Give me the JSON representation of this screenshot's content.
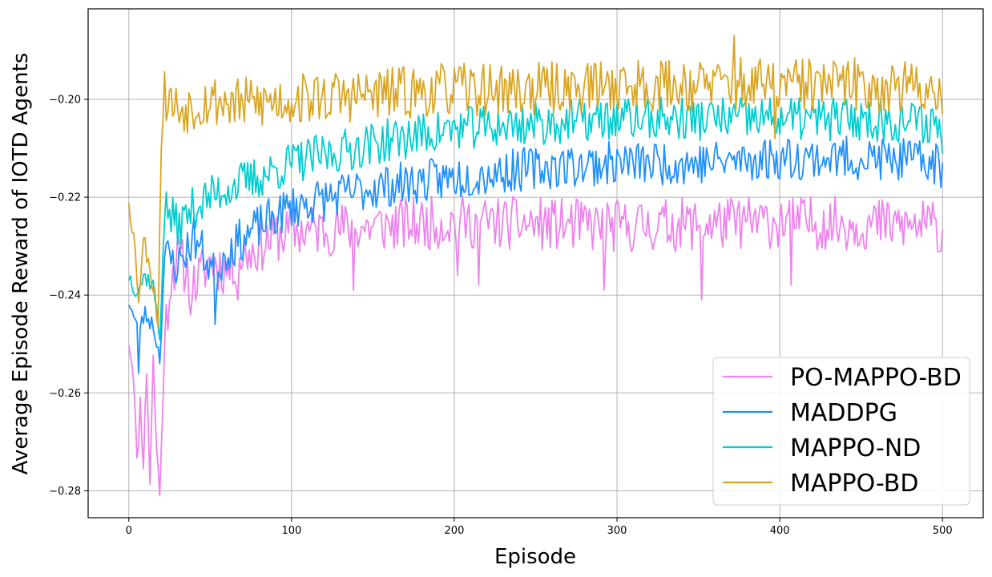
{
  "chart_data": {
    "type": "line",
    "title": "",
    "xlabel": "Episode",
    "ylabel": "Average Episode Reward of IOTD Agents",
    "xlim": [
      -25,
      525
    ],
    "ylim": [
      -0.2855,
      -0.1815
    ],
    "xticks": [
      0,
      100,
      200,
      300,
      400,
      500
    ],
    "yticks": [
      -0.28,
      -0.26,
      -0.24,
      -0.22,
      -0.2
    ],
    "ytick_labels": [
      "−0.28",
      "−0.26",
      "−0.24",
      "−0.22",
      "−0.20"
    ],
    "grid": true,
    "legend_position": "lower-right",
    "series": [
      {
        "name": "PO-MAPPO-BD",
        "color": "#ee82ee",
        "keypoints": [
          [
            0,
            -0.249
          ],
          [
            3,
            -0.256
          ],
          [
            5,
            -0.275
          ],
          [
            7,
            -0.262
          ],
          [
            9,
            -0.274
          ],
          [
            11,
            -0.255
          ],
          [
            13,
            -0.278
          ],
          [
            15,
            -0.253
          ],
          [
            17,
            -0.271
          ],
          [
            19,
            -0.281
          ],
          [
            21,
            -0.26
          ],
          [
            23,
            -0.245
          ],
          [
            26,
            -0.236
          ],
          [
            30,
            -0.232
          ],
          [
            35,
            -0.235
          ],
          [
            40,
            -0.238
          ],
          [
            50,
            -0.233
          ],
          [
            60,
            -0.235
          ],
          [
            70,
            -0.232
          ],
          [
            80,
            -0.23
          ],
          [
            90,
            -0.228
          ],
          [
            100,
            -0.227
          ],
          [
            150,
            -0.226
          ],
          [
            200,
            -0.225
          ],
          [
            300,
            -0.226
          ],
          [
            400,
            -0.225
          ],
          [
            500,
            -0.226
          ]
        ],
        "noise": 0.0055,
        "seed": 11,
        "spikes": [
          [
            19,
            -0.281
          ],
          [
            38,
            -0.244
          ],
          [
            67,
            -0.241
          ],
          [
            138,
            -0.239
          ],
          [
            202,
            -0.236
          ],
          [
            215,
            -0.238
          ],
          [
            292,
            -0.239
          ],
          [
            352,
            -0.241
          ],
          [
            407,
            -0.238
          ],
          [
            499,
            -0.231
          ]
        ]
      },
      {
        "name": "MADDPG",
        "color": "#1e90ff",
        "keypoints": [
          [
            0,
            -0.241
          ],
          [
            5,
            -0.247
          ],
          [
            10,
            -0.244
          ],
          [
            15,
            -0.246
          ],
          [
            19,
            -0.253
          ],
          [
            22,
            -0.232
          ],
          [
            30,
            -0.234
          ],
          [
            40,
            -0.228
          ],
          [
            53,
            -0.236
          ],
          [
            60,
            -0.231
          ],
          [
            80,
            -0.226
          ],
          [
            100,
            -0.222
          ],
          [
            150,
            -0.218
          ],
          [
            200,
            -0.216
          ],
          [
            250,
            -0.214
          ],
          [
            300,
            -0.213
          ],
          [
            350,
            -0.213
          ],
          [
            400,
            -0.212
          ],
          [
            450,
            -0.212
          ],
          [
            500,
            -0.213
          ]
        ],
        "noise": 0.0045,
        "seed": 23,
        "spikes": [
          [
            6,
            -0.256
          ],
          [
            53,
            -0.246
          ],
          [
            499,
            -0.218
          ]
        ]
      },
      {
        "name": "MAPPO-ND",
        "color": "#00ced1",
        "keypoints": [
          [
            0,
            -0.236
          ],
          [
            5,
            -0.239
          ],
          [
            10,
            -0.236
          ],
          [
            15,
            -0.238
          ],
          [
            19,
            -0.249
          ],
          [
            22,
            -0.222
          ],
          [
            30,
            -0.226
          ],
          [
            40,
            -0.222
          ],
          [
            60,
            -0.218
          ],
          [
            80,
            -0.216
          ],
          [
            100,
            -0.213
          ],
          [
            150,
            -0.209
          ],
          [
            200,
            -0.206
          ],
          [
            250,
            -0.205
          ],
          [
            300,
            -0.204
          ],
          [
            350,
            -0.204
          ],
          [
            400,
            -0.204
          ],
          [
            450,
            -0.204
          ],
          [
            500,
            -0.205
          ]
        ],
        "noise": 0.0045,
        "seed": 37,
        "spikes": [
          [
            500,
            -0.211
          ]
        ]
      },
      {
        "name": "MAPPO-BD",
        "color": "#daa520",
        "keypoints": [
          [
            0,
            -0.22
          ],
          [
            3,
            -0.228
          ],
          [
            6,
            -0.24
          ],
          [
            9,
            -0.229
          ],
          [
            12,
            -0.232
          ],
          [
            15,
            -0.238
          ],
          [
            18,
            -0.245
          ],
          [
            20,
            -0.208
          ],
          [
            22,
            -0.199
          ],
          [
            30,
            -0.202
          ],
          [
            50,
            -0.2
          ],
          [
            70,
            -0.201
          ],
          [
            100,
            -0.2
          ],
          [
            150,
            -0.199
          ],
          [
            200,
            -0.198
          ],
          [
            250,
            -0.198
          ],
          [
            300,
            -0.197
          ],
          [
            350,
            -0.197
          ],
          [
            400,
            -0.197
          ],
          [
            450,
            -0.197
          ],
          [
            500,
            -0.198
          ]
        ],
        "noise": 0.0055,
        "seed": 53,
        "spikes": [
          [
            372,
            -0.187
          ],
          [
            397,
            -0.208
          ],
          [
            500,
            -0.203
          ]
        ]
      }
    ]
  }
}
